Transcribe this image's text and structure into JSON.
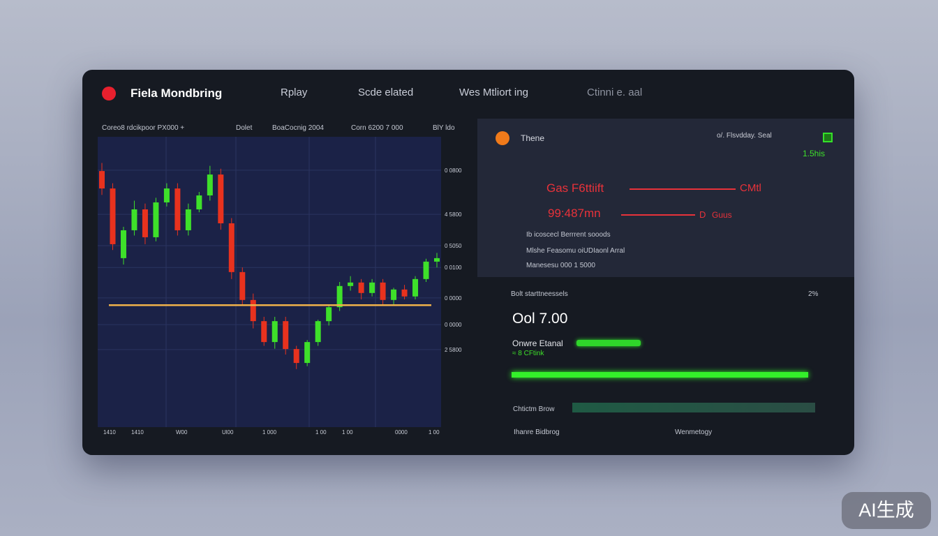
{
  "header": {
    "title": "Fiela Mondbring",
    "nav": [
      "Rplay",
      "Scde elated",
      "Wes Mtliort ing",
      "Ctinni e. aal"
    ]
  },
  "chart": {
    "header_labels": [
      "Coreo8 rdcikpoor PX000 +",
      "Dolet",
      "BoaCocnig 2004",
      "Corn 6200 7 000",
      "BlY ldo"
    ],
    "ylim": [
      0,
      100
    ],
    "yticks": [
      {
        "value": 88.5,
        "label": "0 0800"
      },
      {
        "value": 73.3,
        "label": "4 5800"
      },
      {
        "value": 62.5,
        "label": "0 5050"
      },
      {
        "value": 55,
        "label": "0 0100"
      },
      {
        "value": 44.5,
        "label": "0 0000"
      },
      {
        "value": 35.3,
        "label": "0 0000"
      },
      {
        "value": 26.7,
        "label": "2 5800"
      }
    ],
    "xlabels": [
      "1410",
      "1410",
      "W00",
      "Ul00",
      "1 000",
      "1 00",
      "1 00",
      "0000",
      "1 00"
    ],
    "up_color": "#3ee02a",
    "down_color": "#e8321e",
    "support_color": "#f0b24a",
    "support": 42,
    "candles": [
      [
        88.2,
        91,
        80,
        82.2
      ],
      [
        82.2,
        84,
        61,
        63
      ],
      [
        58.2,
        69,
        56,
        67.8
      ],
      [
        67.8,
        78,
        66,
        75
      ],
      [
        75,
        77,
        63,
        65.4
      ],
      [
        65.4,
        79,
        64,
        77.4
      ],
      [
        77.4,
        84,
        76,
        82.2
      ],
      [
        82.2,
        84,
        66,
        67.8
      ],
      [
        67.8,
        77,
        66,
        75
      ],
      [
        75,
        81,
        74,
        79.8
      ],
      [
        79.8,
        90,
        78,
        87
      ],
      [
        87,
        89,
        68,
        70.2
      ],
      [
        70.2,
        72,
        51,
        53.4
      ],
      [
        53.4,
        55,
        42,
        43.8
      ],
      [
        43.8,
        46,
        34,
        36.5
      ],
      [
        36.5,
        38,
        28,
        29.3
      ],
      [
        29.3,
        38,
        27,
        36.5
      ],
      [
        36.5,
        38,
        25,
        26.9
      ],
      [
        26.9,
        28,
        20,
        22.1
      ],
      [
        22.1,
        30,
        21,
        29.3
      ],
      [
        29.3,
        37,
        28,
        36.5
      ],
      [
        36.5,
        42,
        35,
        41.3
      ],
      [
        41.3,
        50,
        40,
        48.6
      ],
      [
        48.6,
        52,
        47,
        49.8
      ],
      [
        49.8,
        51,
        44,
        46.2
      ],
      [
        46.2,
        51,
        45,
        49.8
      ],
      [
        49.8,
        51,
        42,
        43.8
      ],
      [
        43.8,
        48,
        42,
        47.4
      ],
      [
        47.4,
        49,
        44,
        45
      ],
      [
        45,
        52,
        44,
        51
      ],
      [
        51,
        58,
        50,
        57
      ],
      [
        57,
        60,
        55,
        58.2
      ]
    ]
  },
  "info": {
    "icon_label": "Thene",
    "top_right": "o/. Flsvdday. Seal",
    "rate": "1.5his",
    "line1_left": "Gas F6ttiift",
    "line1_right": "CMtl",
    "line2_left": "99:487mn",
    "line2_mid": "D",
    "line2_right": "Guus",
    "notes": [
      "Ib icoscecl Berrrent sooods",
      "Mlshe Feasomu oiUDIaonl Arral",
      "Manesesu 000 1 5000"
    ]
  },
  "stats": {
    "title": "Bolt starttneessels",
    "pct": "2%",
    "big": "Ool 7.00",
    "row1": "Onwre Etanal",
    "row1_sub": "≈ 8 CFtink",
    "row2": "Chtictm Brow",
    "foot_left": "Ihanre Bidbrog",
    "foot_right": "Wenmetogy"
  },
  "watermark": "AI生成"
}
